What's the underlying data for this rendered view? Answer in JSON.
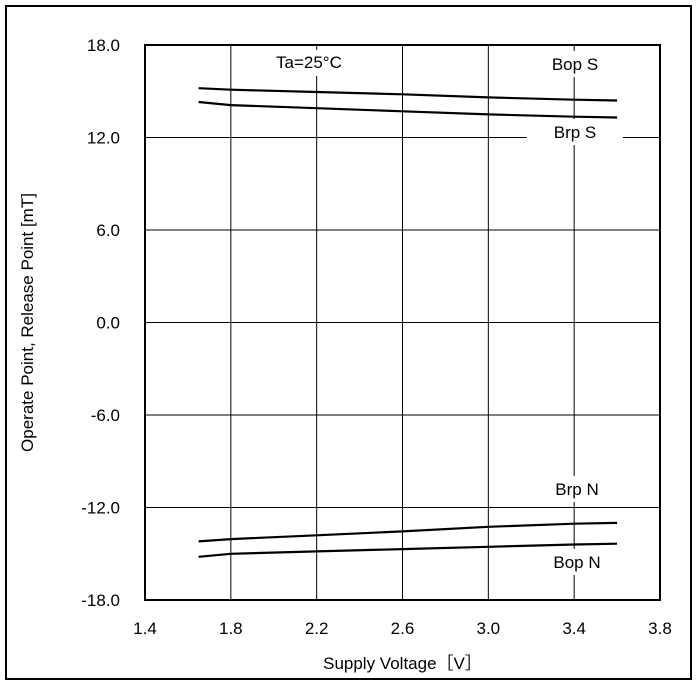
{
  "chart_data": {
    "type": "line",
    "annotation": "Ta=25°C",
    "xlabel": "Supply Voltage［V］",
    "ylabel": "Operate Point, Release Point [mT]",
    "xlim": [
      1.4,
      3.8
    ],
    "ylim": [
      -18.0,
      18.0
    ],
    "x_ticks": [
      "1.4",
      "1.8",
      "2.2",
      "2.6",
      "3.0",
      "3.4",
      "3.8"
    ],
    "y_ticks": [
      "18.0",
      "12.0",
      "6.0",
      "0.0",
      "-6.0",
      "-12.0",
      "-18.0"
    ],
    "grid": true,
    "series": [
      {
        "name": "Bop S",
        "x": [
          1.65,
          1.8,
          2.2,
          2.6,
          3.0,
          3.4,
          3.6
        ],
        "values": [
          15.2,
          15.1,
          14.95,
          14.8,
          14.6,
          14.45,
          14.4
        ]
      },
      {
        "name": "Brp S",
        "x": [
          1.65,
          1.8,
          2.2,
          2.6,
          3.0,
          3.4,
          3.6
        ],
        "values": [
          14.3,
          14.1,
          13.9,
          13.7,
          13.5,
          13.35,
          13.3
        ]
      },
      {
        "name": "Brp N",
        "x": [
          1.65,
          1.8,
          2.2,
          2.6,
          3.0,
          3.4,
          3.6
        ],
        "values": [
          -14.2,
          -14.05,
          -13.8,
          -13.55,
          -13.25,
          -13.05,
          -13.0
        ]
      },
      {
        "name": "Bop N",
        "x": [
          1.65,
          1.8,
          2.2,
          2.6,
          3.0,
          3.4,
          3.6
        ],
        "values": [
          -15.2,
          -15.0,
          -14.85,
          -14.7,
          -14.55,
          -14.4,
          -14.35
        ]
      }
    ],
    "line_color": "#000000"
  }
}
